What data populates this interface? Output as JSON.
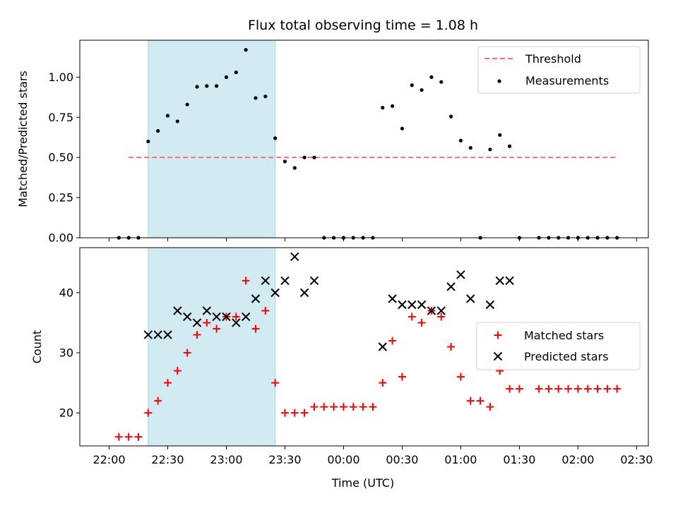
{
  "chart_data": {
    "title": "Flux total observing time = 1.08 h",
    "xlabel": "Time (UTC)",
    "x_unit": "hours after 22:00 UTC",
    "x_ticks": [
      "22:00",
      "22:30",
      "23:00",
      "23:30",
      "00:00",
      "00:30",
      "01:00",
      "01:30",
      "02:00",
      "02:30"
    ],
    "highlight_span": [
      "22:20",
      "23:25"
    ],
    "highlight_color": "#add8e6",
    "panels": [
      {
        "type": "scatter",
        "ylabel": "Matched/Predicted stars",
        "ylim": [
          0,
          1.23
        ],
        "yticks": [
          "0.00",
          "0.25",
          "0.50",
          "0.75",
          "1.00"
        ],
        "threshold": {
          "name": "Threshold",
          "y": 0.5,
          "x_start": "22:10",
          "x_end": "02:20",
          "color": "#ff6f6f"
        },
        "series": [
          {
            "name": "Measurements",
            "marker": "dot",
            "color": "#000000",
            "points": [
              [
                "22:05",
                0
              ],
              [
                "22:10",
                0
              ],
              [
                "22:15",
                0
              ],
              [
                "22:20",
                0.6
              ],
              [
                "22:25",
                0.665
              ],
              [
                "22:30",
                0.76
              ],
              [
                "22:35",
                0.725
              ],
              [
                "22:40",
                0.83
              ],
              [
                "22:45",
                0.94
              ],
              [
                "22:50",
                0.945
              ],
              [
                "22:55",
                0.945
              ],
              [
                "23:00",
                1.0
              ],
              [
                "23:05",
                1.03
              ],
              [
                "23:10",
                1.17
              ],
              [
                "23:15",
                0.87
              ],
              [
                "23:20",
                0.88
              ],
              [
                "23:25",
                0.62
              ],
              [
                "23:30",
                0.475
              ],
              [
                "23:35",
                0.435
              ],
              [
                "23:40",
                0.5
              ],
              [
                "23:45",
                0.5
              ],
              [
                "23:50",
                0
              ],
              [
                "23:55",
                0
              ],
              [
                "00:00",
                0
              ],
              [
                "00:05",
                0
              ],
              [
                "00:10",
                0
              ],
              [
                "00:15",
                0
              ],
              [
                "00:20",
                0.81
              ],
              [
                "00:25",
                0.82
              ],
              [
                "00:30",
                0.68
              ],
              [
                "00:35",
                0.95
              ],
              [
                "00:40",
                0.92
              ],
              [
                "00:45",
                1.0
              ],
              [
                "00:50",
                0.97
              ],
              [
                "00:55",
                0.755
              ],
              [
                "01:00",
                0.605
              ],
              [
                "01:05",
                0.56
              ],
              [
                "01:10",
                0
              ],
              [
                "01:15",
                0.55
              ],
              [
                "01:20",
                0.64
              ],
              [
                "01:25",
                0.57
              ],
              [
                "01:30",
                0
              ],
              [
                "01:40",
                0
              ],
              [
                "01:45",
                0
              ],
              [
                "01:50",
                0
              ],
              [
                "01:55",
                0
              ],
              [
                "02:00",
                0
              ],
              [
                "02:05",
                0
              ],
              [
                "02:10",
                0
              ],
              [
                "02:15",
                0
              ],
              [
                "02:20",
                0
              ]
            ]
          }
        ]
      },
      {
        "type": "scatter",
        "ylabel": "Count",
        "ylim": [
          14.5,
          47.5
        ],
        "yticks": [
          "20",
          "30",
          "40"
        ],
        "series": [
          {
            "name": "Matched stars",
            "marker": "plus",
            "color": "#ff0000",
            "points": [
              [
                "22:05",
                16
              ],
              [
                "22:10",
                16
              ],
              [
                "22:15",
                16
              ],
              [
                "22:20",
                20
              ],
              [
                "22:25",
                22
              ],
              [
                "22:30",
                25
              ],
              [
                "22:35",
                27
              ],
              [
                "22:40",
                30
              ],
              [
                "22:45",
                33
              ],
              [
                "22:50",
                35
              ],
              [
                "22:55",
                34
              ],
              [
                "23:00",
                36
              ],
              [
                "23:05",
                36
              ],
              [
                "23:10",
                42
              ],
              [
                "23:15",
                34
              ],
              [
                "23:20",
                37
              ],
              [
                "23:25",
                25
              ],
              [
                "23:30",
                20
              ],
              [
                "23:35",
                20
              ],
              [
                "23:40",
                20
              ],
              [
                "23:45",
                21
              ],
              [
                "23:50",
                21
              ],
              [
                "23:55",
                21
              ],
              [
                "00:00",
                21
              ],
              [
                "00:05",
                21
              ],
              [
                "00:10",
                21
              ],
              [
                "00:15",
                21
              ],
              [
                "00:20",
                25
              ],
              [
                "00:25",
                32
              ],
              [
                "00:30",
                26
              ],
              [
                "00:35",
                36
              ],
              [
                "00:40",
                35
              ],
              [
                "00:45",
                37
              ],
              [
                "00:50",
                36
              ],
              [
                "00:55",
                31
              ],
              [
                "01:00",
                26
              ],
              [
                "01:05",
                22
              ],
              [
                "01:10",
                22
              ],
              [
                "01:15",
                21
              ],
              [
                "01:20",
                27
              ],
              [
                "01:25",
                24
              ],
              [
                "01:30",
                24
              ],
              [
                "01:40",
                24
              ],
              [
                "01:45",
                24
              ],
              [
                "01:50",
                24
              ],
              [
                "01:55",
                24
              ],
              [
                "02:00",
                24
              ],
              [
                "02:05",
                24
              ],
              [
                "02:10",
                24
              ],
              [
                "02:15",
                24
              ],
              [
                "02:20",
                24
              ]
            ]
          },
          {
            "name": "Predicted stars",
            "marker": "x",
            "color": "#000000",
            "points": [
              [
                "22:20",
                33
              ],
              [
                "22:25",
                33
              ],
              [
                "22:30",
                33
              ],
              [
                "22:35",
                37
              ],
              [
                "22:40",
                36
              ],
              [
                "22:45",
                35
              ],
              [
                "22:50",
                37
              ],
              [
                "22:55",
                36
              ],
              [
                "23:00",
                36
              ],
              [
                "23:05",
                35
              ],
              [
                "23:10",
                36
              ],
              [
                "23:15",
                39
              ],
              [
                "23:20",
                42
              ],
              [
                "23:25",
                40
              ],
              [
                "23:30",
                42
              ],
              [
                "23:35",
                46
              ],
              [
                "23:40",
                40
              ],
              [
                "23:45",
                42
              ],
              [
                "00:20",
                31
              ],
              [
                "00:25",
                39
              ],
              [
                "00:30",
                38
              ],
              [
                "00:35",
                38
              ],
              [
                "00:40",
                38
              ],
              [
                "00:45",
                37
              ],
              [
                "00:50",
                37
              ],
              [
                "00:55",
                41
              ],
              [
                "01:00",
                43
              ],
              [
                "01:05",
                39
              ],
              [
                "01:15",
                38
              ],
              [
                "01:20",
                42
              ],
              [
                "01:25",
                42
              ]
            ]
          }
        ]
      }
    ]
  }
}
